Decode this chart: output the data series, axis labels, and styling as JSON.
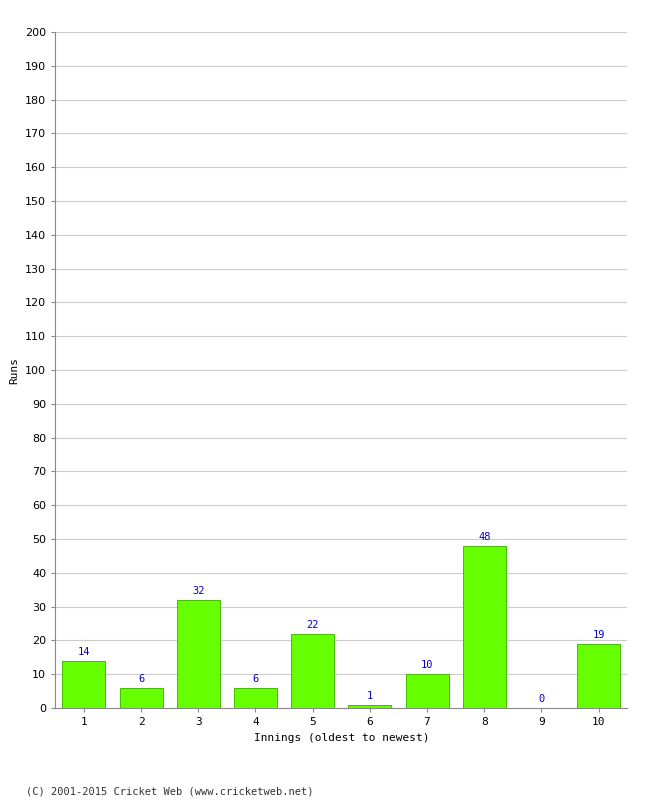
{
  "categories": [
    "1",
    "2",
    "3",
    "4",
    "5",
    "6",
    "7",
    "8",
    "9",
    "10"
  ],
  "values": [
    14,
    6,
    32,
    6,
    22,
    1,
    10,
    48,
    0,
    19
  ],
  "bar_color": "#66ff00",
  "bar_edge_color": "#44bb00",
  "label_color": "#0000cc",
  "ylabel": "Runs",
  "xlabel": "Innings (oldest to newest)",
  "ylim": [
    0,
    200
  ],
  "yticks": [
    0,
    10,
    20,
    30,
    40,
    50,
    60,
    70,
    80,
    90,
    100,
    110,
    120,
    130,
    140,
    150,
    160,
    170,
    180,
    190,
    200
  ],
  "footer": "(C) 2001-2015 Cricket Web (www.cricketweb.net)",
  "background_color": "#ffffff",
  "grid_color": "#cccccc",
  "label_fontsize": 7.5,
  "axis_label_fontsize": 8,
  "tick_fontsize": 8,
  "footer_fontsize": 7.5,
  "spine_color": "#888888"
}
